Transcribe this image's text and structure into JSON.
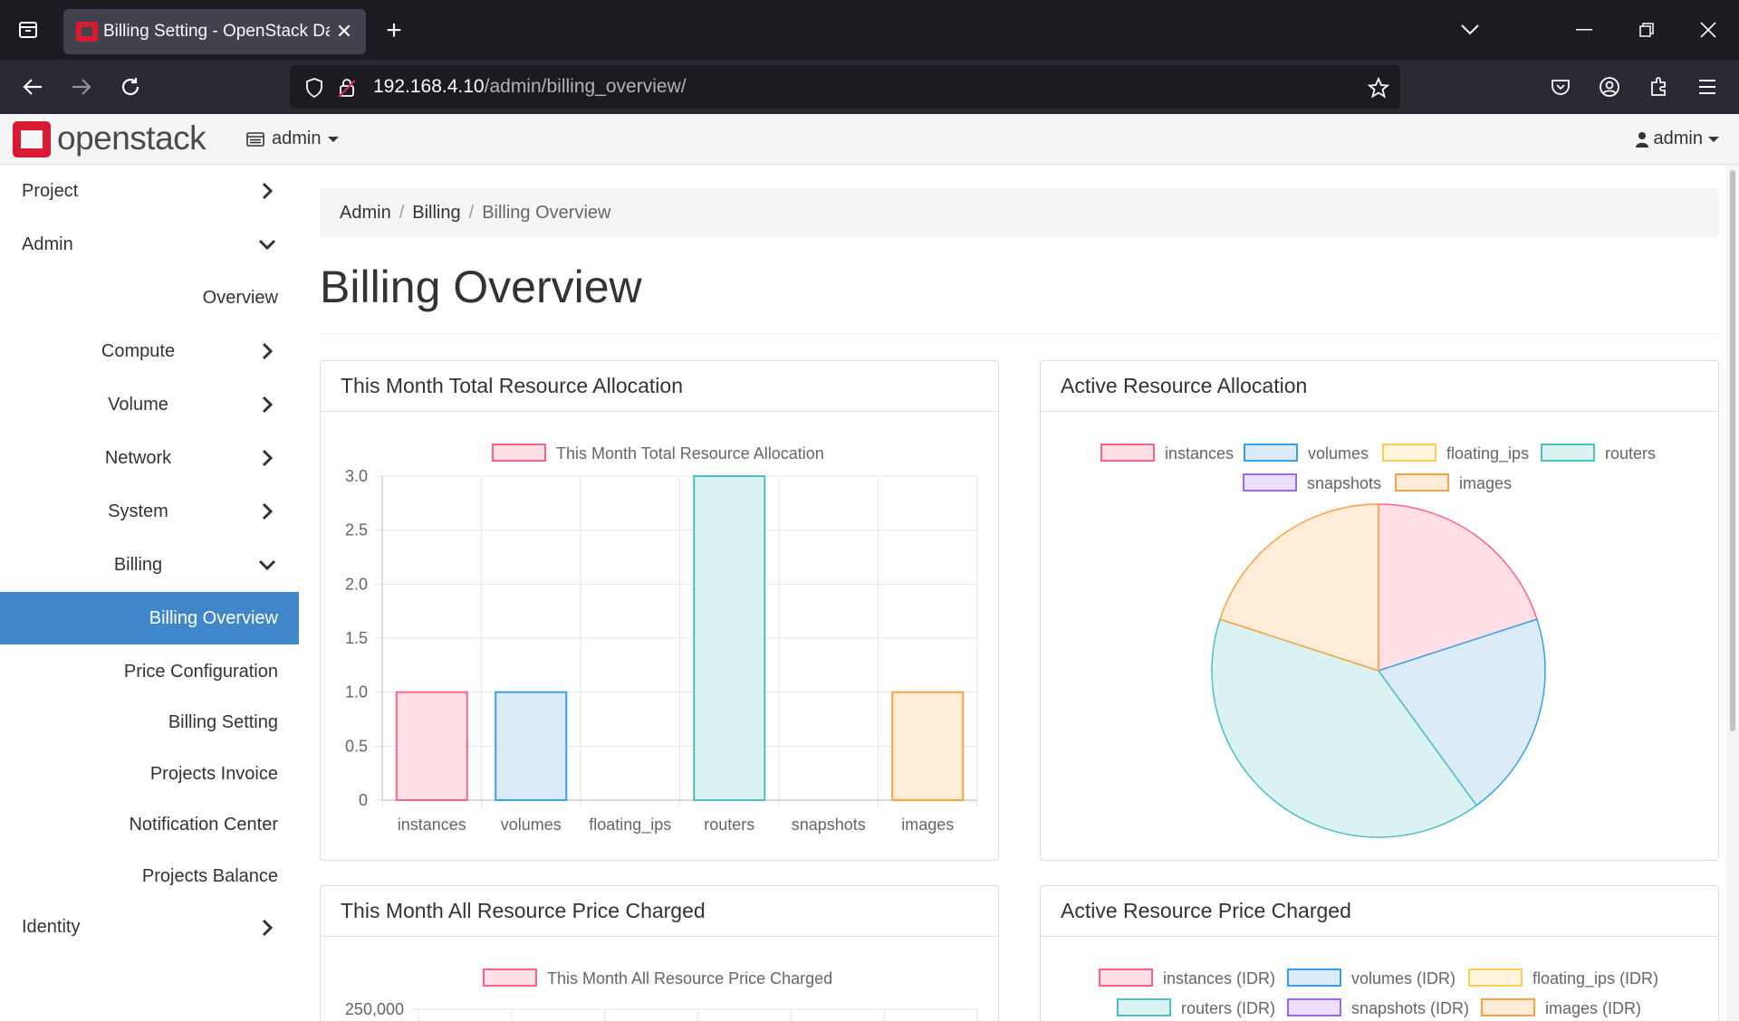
{
  "browser": {
    "tab_title": "Billing Setting - OpenStack Dashboard",
    "url_host": "192.168.4.10",
    "url_path": "/admin/billing_overview/"
  },
  "header": {
    "logo_text": "openstack",
    "project": "admin",
    "user": "admin"
  },
  "sidebar": {
    "items": [
      {
        "label": "Project",
        "level": 0,
        "chevron": "right"
      },
      {
        "label": "Admin",
        "level": 0,
        "chevron": "down"
      },
      {
        "label": "Overview",
        "level": 2,
        "chevron": ""
      },
      {
        "label": "Compute",
        "level": 1,
        "chevron": "right"
      },
      {
        "label": "Volume",
        "level": 1,
        "chevron": "right"
      },
      {
        "label": "Network",
        "level": 1,
        "chevron": "right"
      },
      {
        "label": "System",
        "level": 1,
        "chevron": "right"
      },
      {
        "label": "Billing",
        "level": 1,
        "chevron": "down"
      },
      {
        "label": "Billing Overview",
        "level": 2,
        "chevron": "",
        "active": true
      },
      {
        "label": "Price Configuration",
        "level": 2,
        "chevron": ""
      },
      {
        "label": "Billing Setting",
        "level": 2,
        "chevron": ""
      },
      {
        "label": "Projects Invoice",
        "level": 2,
        "chevron": ""
      },
      {
        "label": "Notification Center",
        "level": 2,
        "chevron": ""
      },
      {
        "label": "Projects Balance",
        "level": 2,
        "chevron": ""
      },
      {
        "label": "Identity",
        "level": 0,
        "chevron": "right"
      }
    ]
  },
  "breadcrumb": {
    "items": [
      "Admin",
      "Billing",
      "Billing Overview"
    ]
  },
  "page": {
    "title": "Billing Overview"
  },
  "panels": {
    "total_allocation": "This Month Total Resource Allocation",
    "active_allocation": "Active Resource Allocation",
    "all_price": "This Month All Resource Price Charged",
    "active_price": "Active Resource Price Charged"
  },
  "palette": {
    "fills": [
      "#ffe0e6",
      "#dbecf8",
      "#fff5dd",
      "#dbf2f2",
      "#ebe0ff",
      "#ffecd9"
    ],
    "strokes": [
      "#ff6384",
      "#36a2eb",
      "#ffcd56",
      "#4bc0c0",
      "#9966ff",
      "#ff9f40"
    ]
  },
  "chart_data": [
    {
      "type": "bar",
      "legend": [
        "This Month Total Resource Allocation"
      ],
      "categories": [
        "instances",
        "volumes",
        "floating_ips",
        "routers",
        "snapshots",
        "images"
      ],
      "values": [
        1,
        1,
        0,
        3,
        0,
        1
      ],
      "ylim": [
        0,
        3
      ],
      "yticks": [
        "0",
        "0.5",
        "1.0",
        "1.5",
        "2.0",
        "2.5",
        "3.0"
      ],
      "grid": true
    },
    {
      "type": "pie",
      "legend": [
        "instances",
        "volumes",
        "floating_ips",
        "routers",
        "snapshots",
        "images"
      ],
      "labels": [
        "instances",
        "volumes",
        "floating_ips",
        "routers",
        "snapshots",
        "images"
      ],
      "values": [
        1,
        1,
        0,
        2,
        0,
        1
      ]
    },
    {
      "type": "bar",
      "legend": [
        "This Month All Resource Price Charged"
      ],
      "yticks": [
        "250,000"
      ]
    },
    {
      "type": "pie",
      "legend": [
        "instances (IDR)",
        "volumes (IDR)",
        "floating_ips (IDR)",
        "routers (IDR)",
        "snapshots (IDR)",
        "images (IDR)"
      ]
    }
  ]
}
